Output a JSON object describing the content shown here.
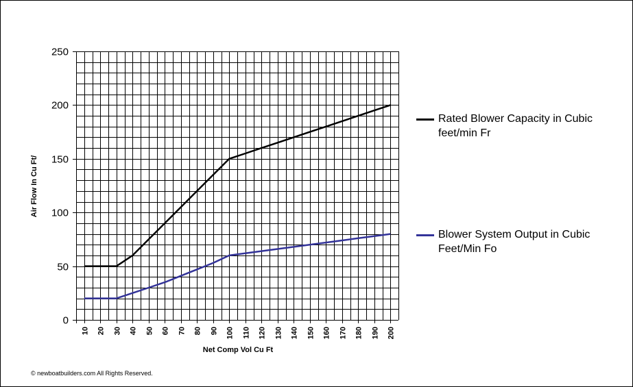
{
  "chart_data": {
    "type": "line",
    "title": "",
    "xlabel": "Net Comp Vol Cu Ft",
    "ylabel": "Air Flow In Cu Ft/",
    "xlim": [
      10,
      200
    ],
    "ylim": [
      0,
      250
    ],
    "x_ticks": [
      10,
      20,
      30,
      40,
      50,
      60,
      70,
      80,
      90,
      100,
      110,
      120,
      130,
      140,
      150,
      160,
      170,
      180,
      190,
      200
    ],
    "y_ticks": [
      0,
      50,
      100,
      150,
      200,
      250
    ],
    "grid": true,
    "legend_position": "right",
    "x": [
      10,
      20,
      30,
      40,
      50,
      60,
      70,
      80,
      90,
      100,
      110,
      120,
      130,
      140,
      150,
      160,
      170,
      180,
      190,
      200
    ],
    "series": [
      {
        "name": "Rated Blower Capacity in Cubic feet/min Fr",
        "color": "#000000",
        "values": [
          50,
          50,
          50,
          60,
          75,
          90,
          105,
          120,
          135,
          150,
          155,
          160,
          165,
          170,
          175,
          180,
          185,
          190,
          195,
          200
        ]
      },
      {
        "name": "Blower System Output in Cubic Feet/Min Fo",
        "color": "#333399",
        "values": [
          20,
          20,
          20,
          25,
          30,
          35,
          41,
          47,
          53,
          60,
          62,
          64,
          66,
          68,
          70,
          72,
          74,
          76,
          78,
          80
        ]
      }
    ]
  },
  "copyright": "© newboatbuilders.com    All Rights Reserved."
}
